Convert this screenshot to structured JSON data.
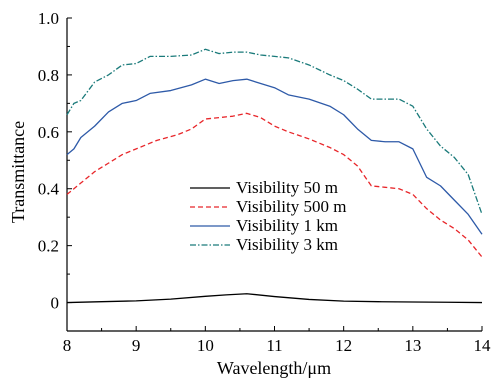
{
  "chart_data": {
    "type": "line",
    "xlabel": "Wavelength/μm",
    "ylabel": "Transmittance",
    "xlim": [
      8,
      14
    ],
    "ylim": [
      -0.1,
      1.0
    ],
    "xticks": [
      "8",
      "9",
      "10",
      "11",
      "12",
      "13",
      "14"
    ],
    "yticks": [
      "0",
      "0.2",
      "0.4",
      "0.6",
      "0.8",
      "1.0"
    ],
    "grid": false,
    "legend_position": "center",
    "series": [
      {
        "name": "Visibility 50 m",
        "color": "#000000",
        "style": "solid",
        "x": [
          8.0,
          8.5,
          9.0,
          9.5,
          10.0,
          10.3,
          10.6,
          11.0,
          11.5,
          12.0,
          12.5,
          13.0,
          13.5,
          14.0
        ],
        "values": [
          0.0,
          0.003,
          0.006,
          0.012,
          0.022,
          0.027,
          0.031,
          0.021,
          0.011,
          0.005,
          0.003,
          0.002,
          0.001,
          0.0
        ]
      },
      {
        "name": "Visibility 500 m",
        "color": "#e8262a",
        "style": "dashed",
        "x": [
          8.0,
          8.2,
          8.4,
          8.6,
          8.8,
          9.0,
          9.3,
          9.6,
          9.8,
          10.0,
          10.2,
          10.4,
          10.6,
          10.8,
          11.0,
          11.2,
          11.5,
          11.8,
          12.0,
          12.2,
          12.4,
          12.6,
          12.8,
          13.0,
          13.2,
          13.4,
          13.6,
          13.8,
          14.0
        ],
        "values": [
          0.38,
          0.42,
          0.46,
          0.49,
          0.52,
          0.54,
          0.57,
          0.59,
          0.61,
          0.645,
          0.65,
          0.655,
          0.665,
          0.65,
          0.62,
          0.6,
          0.575,
          0.545,
          0.52,
          0.48,
          0.41,
          0.405,
          0.4,
          0.38,
          0.33,
          0.29,
          0.26,
          0.22,
          0.16
        ]
      },
      {
        "name": "Visibility 1 km",
        "color": "#2e5aa8",
        "style": "solid",
        "x": [
          8.0,
          8.1,
          8.2,
          8.4,
          8.6,
          8.8,
          9.0,
          9.2,
          9.5,
          9.8,
          10.0,
          10.2,
          10.4,
          10.6,
          10.8,
          11.0,
          11.2,
          11.5,
          11.8,
          12.0,
          12.2,
          12.4,
          12.6,
          12.8,
          13.0,
          13.2,
          13.4,
          13.6,
          13.8,
          14.0
        ],
        "values": [
          0.52,
          0.54,
          0.58,
          0.62,
          0.67,
          0.7,
          0.71,
          0.735,
          0.745,
          0.765,
          0.785,
          0.77,
          0.78,
          0.785,
          0.77,
          0.755,
          0.73,
          0.715,
          0.69,
          0.66,
          0.61,
          0.57,
          0.565,
          0.565,
          0.54,
          0.44,
          0.41,
          0.36,
          0.31,
          0.24
        ]
      },
      {
        "name": "Visibility 3 km",
        "color": "#1a7a7a",
        "style": "dashdot",
        "x": [
          8.0,
          8.1,
          8.2,
          8.4,
          8.6,
          8.8,
          9.0,
          9.2,
          9.5,
          9.8,
          10.0,
          10.2,
          10.4,
          10.6,
          10.8,
          11.0,
          11.2,
          11.5,
          11.8,
          12.0,
          12.2,
          12.4,
          12.6,
          12.8,
          13.0,
          13.2,
          13.4,
          13.6,
          13.8,
          14.0
        ],
        "values": [
          0.66,
          0.7,
          0.71,
          0.775,
          0.8,
          0.835,
          0.84,
          0.865,
          0.865,
          0.87,
          0.89,
          0.875,
          0.88,
          0.88,
          0.87,
          0.865,
          0.86,
          0.835,
          0.8,
          0.78,
          0.75,
          0.715,
          0.715,
          0.715,
          0.69,
          0.61,
          0.55,
          0.51,
          0.45,
          0.31
        ]
      }
    ]
  }
}
